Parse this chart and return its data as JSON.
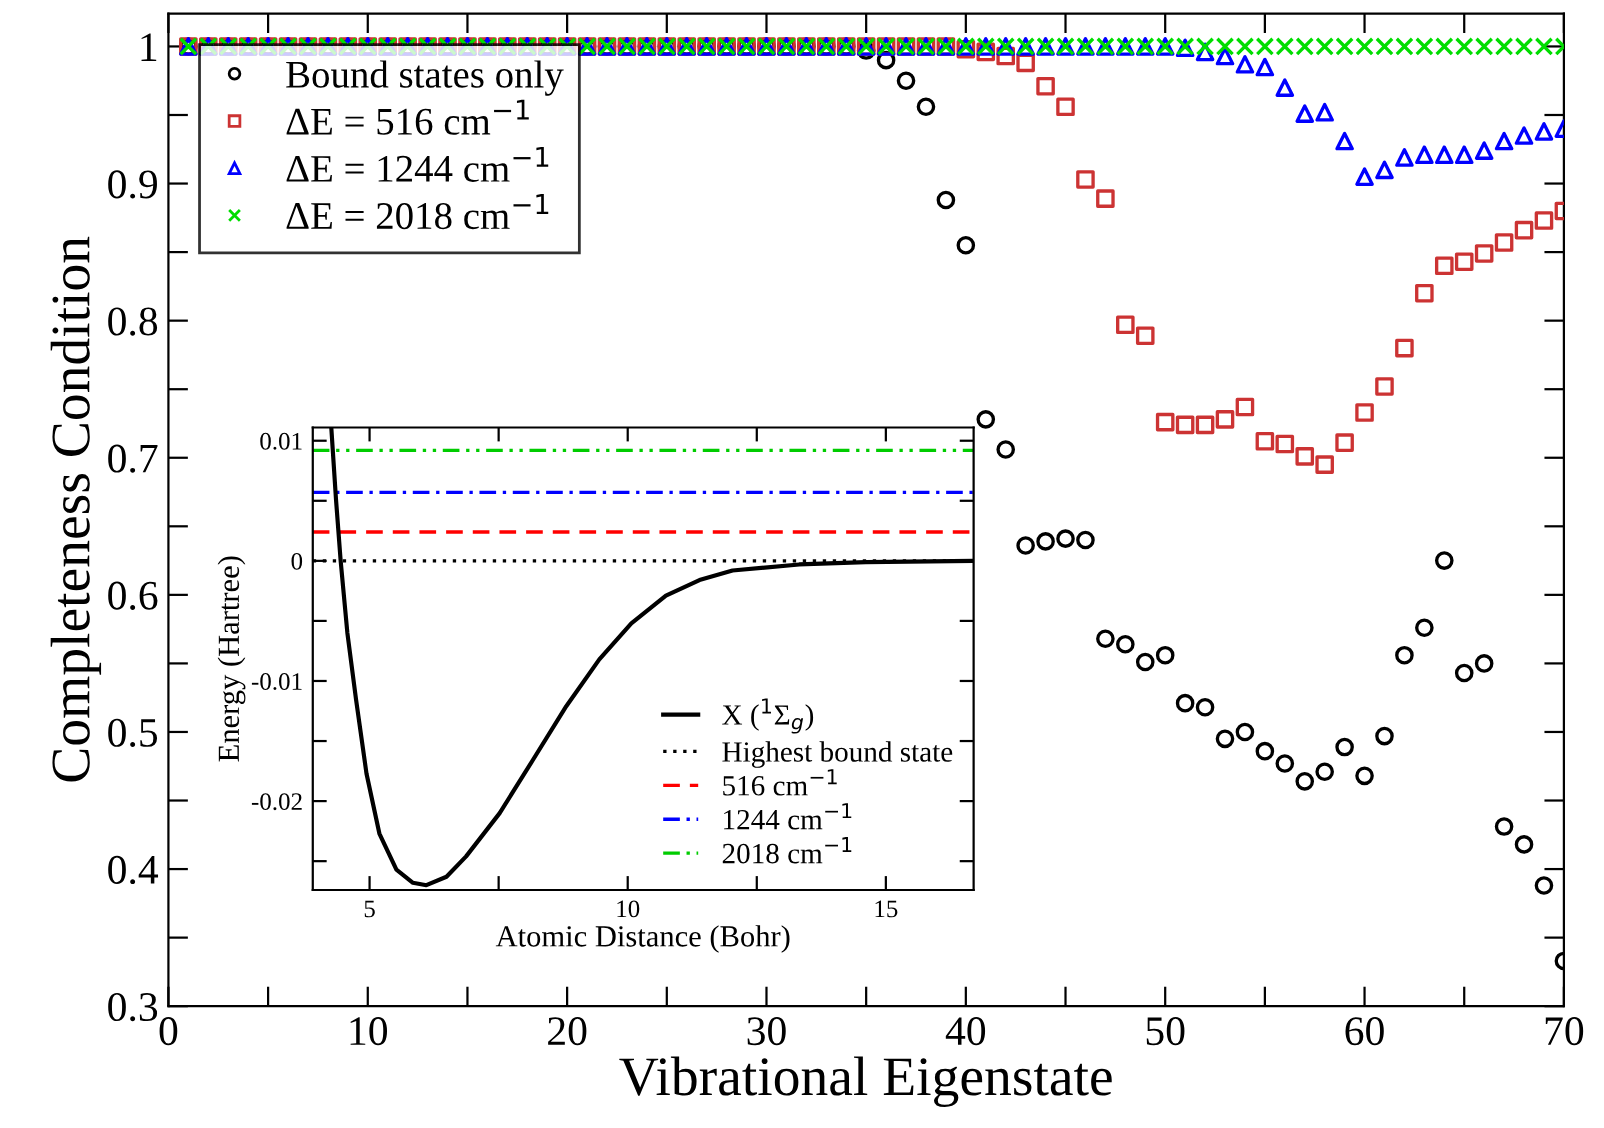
{
  "chart_data": [
    {
      "type": "scatter",
      "xlabel": "Vibrational Eigenstate",
      "ylabel": "Completeness Condition",
      "x": [
        1,
        2,
        3,
        4,
        5,
        6,
        7,
        8,
        9,
        10,
        11,
        12,
        13,
        14,
        15,
        16,
        17,
        18,
        19,
        20,
        21,
        22,
        23,
        24,
        25,
        26,
        27,
        28,
        29,
        30,
        31,
        32,
        33,
        34,
        35,
        36,
        37,
        38,
        39,
        40,
        41,
        42,
        43,
        44,
        45,
        46,
        47,
        48,
        49,
        50,
        51,
        52,
        53,
        54,
        55,
        56,
        57,
        58,
        59,
        60,
        61,
        62,
        63,
        64,
        65,
        66,
        67,
        68,
        69,
        70
      ],
      "series": [
        {
          "name": "Bound states only",
          "color": "#000000",
          "marker": "circle",
          "values": [
            1,
            1,
            1,
            1,
            1,
            1,
            1,
            1,
            1,
            1,
            1,
            1,
            1,
            1,
            1,
            1,
            1,
            1,
            1,
            1,
            1,
            1,
            1,
            1,
            1,
            1,
            1,
            1,
            1,
            1,
            1,
            1,
            1,
            1,
            0.997,
            0.99,
            0.975,
            0.956,
            0.888,
            0.855,
            0.728,
            0.706,
            0.636,
            0.639,
            0.641,
            0.64,
            0.568,
            0.564,
            0.551,
            0.556,
            0.521,
            0.518,
            0.495,
            0.5,
            0.486,
            0.477,
            0.464,
            0.471,
            0.489,
            0.468,
            0.497,
            0.556,
            0.576,
            0.625,
            0.543,
            0.55,
            0.431,
            0.418,
            0.388,
            0.333
          ]
        },
        {
          "name": "ΔE = 516 cm$^{−1}$",
          "color": "#cc3333",
          "marker": "square",
          "values": [
            1,
            1,
            1,
            1,
            1,
            1,
            1,
            1,
            1,
            1,
            1,
            1,
            1,
            1,
            1,
            1,
            1,
            1,
            1,
            1,
            1,
            1,
            1,
            1,
            1,
            1,
            1,
            1,
            1,
            1,
            1,
            1,
            1,
            1,
            1,
            1,
            1,
            1,
            1,
            0.998,
            0.996,
            0.993,
            0.988,
            0.971,
            0.956,
            0.903,
            0.889,
            0.797,
            0.789,
            0.726,
            0.724,
            0.724,
            0.728,
            0.737,
            0.712,
            0.71,
            0.701,
            0.695,
            0.711,
            0.733,
            0.752,
            0.78,
            0.82,
            0.84,
            0.843,
            0.849,
            0.857,
            0.866,
            0.873,
            0.88
          ]
        },
        {
          "name": "ΔE = 1244 cm$^{−1}$",
          "color": "#0000ff",
          "marker": "triangle",
          "values": [
            1,
            1,
            1,
            1,
            1,
            1,
            1,
            1,
            1,
            1,
            1,
            1,
            1,
            1,
            1,
            1,
            1,
            1,
            1,
            1,
            1,
            1,
            1,
            1,
            1,
            1,
            1,
            1,
            1,
            1,
            1,
            1,
            1,
            1,
            1,
            1,
            1,
            1,
            1,
            1,
            1,
            1,
            1,
            1,
            1,
            1,
            1,
            1,
            1,
            1,
            0.999,
            0.996,
            0.993,
            0.987,
            0.985,
            0.97,
            0.951,
            0.952,
            0.931,
            0.905,
            0.91,
            0.919,
            0.921,
            0.921,
            0.921,
            0.924,
            0.931,
            0.935,
            0.938,
            0.94
          ]
        },
        {
          "name": "ΔE = 2018 cm$^{−1}$",
          "color": "#00dd00",
          "marker": "cross",
          "values": [
            1,
            1,
            1,
            1,
            1,
            1,
            1,
            1,
            1,
            1,
            1,
            1,
            1,
            1,
            1,
            1,
            1,
            1,
            1,
            1,
            1,
            1,
            1,
            1,
            1,
            1,
            1,
            1,
            1,
            1,
            1,
            1,
            1,
            1,
            1,
            1,
            1,
            1,
            1,
            1,
            1,
            1,
            1,
            1,
            1,
            1,
            1,
            1,
            1,
            1,
            1,
            1,
            1,
            1,
            1,
            1,
            1,
            1,
            1,
            1,
            1,
            1,
            1,
            1,
            1,
            1,
            1,
            1,
            1,
            1
          ]
        }
      ],
      "xlim": [
        0,
        70
      ],
      "ylim": [
        0.3,
        1.024
      ],
      "xticks": [
        0,
        {
          "value": 5,
          "label": null
        },
        10,
        {
          "value": 15,
          "label": null
        },
        20,
        {
          "value": 25,
          "label": null
        },
        30,
        {
          "value": 35,
          "label": null
        },
        40,
        {
          "value": 45,
          "label": null
        },
        50,
        {
          "value": 55,
          "label": null
        },
        60,
        {
          "value": 65,
          "label": null
        },
        70
      ],
      "yticks": [
        0.3,
        {
          "value": 0.35,
          "label": null
        },
        0.4,
        {
          "value": 0.45,
          "label": null
        },
        0.5,
        {
          "value": 0.55,
          "label": null
        },
        0.6,
        {
          "value": 0.65,
          "label": null
        },
        0.7,
        {
          "value": 0.75,
          "label": null
        },
        0.8,
        {
          "value": 0.85,
          "label": null
        },
        0.9,
        {
          "value": 0.95,
          "label": null
        },
        1
      ],
      "grid": false,
      "legend": "top left"
    },
    {
      "type": "line",
      "xlabel": "Atomic Distance (Bohr)",
      "ylabel": "Energy (Hartree)",
      "series": [
        {
          "name": "X ($^{1}$Σ$_{g}$)",
          "color": "#000000",
          "line_style": "solid",
          "x": [
            4.26,
            4.35,
            4.44,
            4.57,
            4.74,
            4.94,
            5.19,
            5.52,
            5.84,
            6.1,
            6.49,
            6.87,
            7.52,
            8.16,
            8.81,
            9.45,
            10.07,
            10.74,
            11.39,
            12.03,
            13.32,
            14.61,
            16.68
          ],
          "values": [
            0.011,
            0.0051,
            0,
            -0.006,
            -0.0116,
            -0.0177,
            -0.0227,
            -0.0257,
            -0.0268,
            -0.027,
            -0.0263,
            -0.0246,
            -0.021,
            -0.0166,
            -0.0121,
            -0.0082,
            -0.0052,
            -0.0029,
            -0.0016,
            -0.0008,
            -0.0003,
            -0.0001,
            0
          ]
        }
      ],
      "ref_lines": [
        {
          "axis": "y",
          "value": 0,
          "label": "Highest bound state",
          "color": "#000000",
          "line_style": "dotted"
        },
        {
          "axis": "y",
          "value": 0.0024,
          "label": "516 cm$^{−1}$",
          "color": "#ff0000",
          "line_style": "dashed"
        },
        {
          "axis": "y",
          "value": 0.0057,
          "label": "1244 cm$^{−1}$",
          "color": "#0000ff",
          "line_style": "dashdot"
        },
        {
          "axis": "y",
          "value": 0.0092,
          "label": "2018 cm$^{−1}$",
          "color": "#00cc00",
          "line_style": "dashdotdot"
        }
      ],
      "xlim": [
        3.9,
        16.7
      ],
      "ylim": [
        -0.0274,
        0.0111
      ],
      "xticks": [
        5,
        {
          "value": 7.5,
          "label": null
        },
        10,
        {
          "value": 12.5,
          "label": null
        },
        15
      ],
      "yticks": [
        {
          "value": -0.025,
          "label": null
        },
        -0.02,
        {
          "value": -0.015,
          "label": null
        },
        -0.01,
        {
          "value": -0.005,
          "label": null
        },
        0,
        {
          "value": 0.005,
          "label": null
        },
        0.01
      ],
      "grid": false,
      "legend": "bottom right"
    }
  ]
}
